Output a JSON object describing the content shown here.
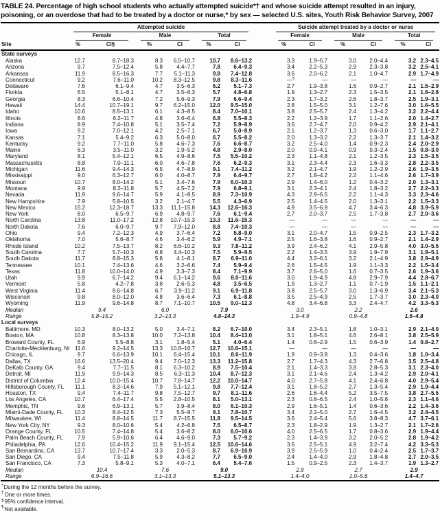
{
  "title": "TABLE 24. Percentage of high school students who actually attempted suicide*† and whose suicide attempt resulted in an injury, poisoning, or an overdose that had to be treated by a doctor or nurse,* by sex — selected U.S. sites, Youth Risk Behavior Survey, 2007",
  "header": {
    "site": "Site",
    "group1": "Attempted suicide",
    "group2": "Suicide attempt treated by a doctor or nurse",
    "subgroups": [
      "Female",
      "Male",
      "Total"
    ],
    "cols": [
      "%",
      "CI§",
      "%",
      "CI",
      "%",
      "CI",
      "%",
      "CI",
      "%",
      "CI",
      "%",
      "CI"
    ]
  },
  "sections": [
    {
      "label": "State surveys",
      "median_label": "Median",
      "range_label": "Range",
      "rows": [
        [
          "Alaska",
          "12.7",
          "8.7–18.3",
          "8.3",
          "6.5–10.7",
          "10.7",
          "8.6–13.2",
          "3.3",
          "1.9–5.7",
          "3.0",
          "2.0–4.4",
          "3.2",
          "2.3–4.5"
        ],
        [
          "Arizona",
          "9.7",
          "7.5–12.4",
          "5.8",
          "4.4–7.7",
          "7.8",
          "6.4–9.3",
          "3.4",
          "2.2–5.3",
          "2.9",
          "2.3–3.8",
          "3.2",
          "2.5–4.1"
        ],
        [
          "Arkansas",
          "11.9",
          "8.5–16.3",
          "7.7",
          "5.1–11.3",
          "9.8",
          "7.4–12.8",
          "3.6",
          "2.0–6.2",
          "2.1",
          "1.0–4.7",
          "2.9",
          "1.7–4.9"
        ],
        [
          "Connecticut",
          "9.2",
          "7.6–11.0",
          "10.2",
          "8.3–12.5",
          "9.8",
          "8.3–11.6",
          "—¶",
          "—",
          "—",
          "—",
          "—",
          "—"
        ],
        [
          "Delaware",
          "7.6",
          "6.1–9.4",
          "4.7",
          "3.5–6.3",
          "6.2",
          "5.1–7.3",
          "2.7",
          "1.9–3.8",
          "1.6",
          "0.9–2.7",
          "2.1",
          "1.5–2.9"
        ],
        [
          "Florida",
          "6.5",
          "5.1–8.1",
          "4.7",
          "3.5–6.3",
          "5.7",
          "4.8–6.8",
          "1.9",
          "1.3–2.7",
          "2.3",
          "1.5–3.5",
          "2.1",
          "1.6–2.8"
        ],
        [
          "Georgia",
          "8.3",
          "6.6–10.4",
          "7.2",
          "5.6–9.3",
          "7.9",
          "6.6–9.4",
          "2.3",
          "1.7–3.2",
          "2.6",
          "1.8–3.7",
          "2.5",
          "1.9–3.1"
        ],
        [
          "Hawaii",
          "14.4",
          "10.7–19.1",
          "9.7",
          "6.2–15.0",
          "12.0",
          "9.5–15.0",
          "2.8",
          "1.5–5.0",
          "3.1",
          "1.2–7.6",
          "3.0",
          "1.6–5.5"
        ],
        [
          "Idaho",
          "10.6",
          "8.5–13.1",
          "6.1",
          "4.3–8.5",
          "8.4",
          "7.0–10.1",
          "3.8",
          "2.5–5.7",
          "2.4",
          "1.3–4.2",
          "3.2",
          "2.2–4.4"
        ],
        [
          "Illinois",
          "8.6",
          "6.2–11.7",
          "4.8",
          "3.6–6.4",
          "6.8",
          "5.5–8.3",
          "2.2",
          "1.2–3.9",
          "1.7",
          "1.1–2.6",
          "2.0",
          "1.4–2.7"
        ],
        [
          "Indiana",
          "8.9",
          "7.4–10.8",
          "5.1",
          "3.5–7.4",
          "7.2",
          "5.9–8.9",
          "3.6",
          "2.7–4.7",
          "2.0",
          "0.9–4.2",
          "2.9",
          "2.1–4.1"
        ],
        [
          "Iowa",
          "9.2",
          "7.0–12.1",
          "4.2",
          "2.5–7.1",
          "6.7",
          "5.0–8.9",
          "2.1",
          "1.2–3.7",
          "1.3",
          "0.6–3.0",
          "1.7",
          "1.1–2.7"
        ],
        [
          "Kansas",
          "7.1",
          "5.4–9.2",
          "6.3",
          "5.0–8.0",
          "6.7",
          "5.5–8.2",
          "2.0",
          "1.3–3.2",
          "2.2",
          "1.3–3.7",
          "2.1",
          "1.4–3.2"
        ],
        [
          "Kentucky",
          "9.2",
          "7.7–11.0",
          "5.8",
          "4.6–7.3",
          "7.6",
          "6.6–8.7",
          "3.2",
          "2.5–4.0",
          "1.4",
          "0.9–2.3",
          "2.4",
          "2.0–2.9"
        ],
        [
          "Maine",
          "6.3",
          "3.5–11.0",
          "3.2",
          "1.9–5.2",
          "4.8",
          "2.9–8.0",
          "2.0",
          "0.9–4.1",
          "0.9",
          "0.3–2.4",
          "1.5",
          "0.8–3.0"
        ],
        [
          "Maryland",
          "8.1",
          "5.4–12.1",
          "6.5",
          "4.9–8.6",
          "7.5",
          "5.5–10.2",
          "2.3",
          "1.1–4.8",
          "2.1",
          "1.2–3.5",
          "2.3",
          "1.5–3.5"
        ],
        [
          "Massachusetts",
          "8.8",
          "7.0–11.1",
          "6.0",
          "4.6–7.8",
          "7.6",
          "6.2–9.3",
          "3.1",
          "2.3–4.4",
          "2.3",
          "1.6–3.3",
          "2.8",
          "2.2–3.5"
        ],
        [
          "Michigan",
          "11.6",
          "9.4–14.3",
          "6.5",
          "4.7–8.9",
          "9.1",
          "7.4–11.2",
          "3.2",
          "2.1–4.7",
          "1.9",
          "1.2–2.9",
          "2.6",
          "1.9–3.5"
        ],
        [
          "Mississippi",
          "9.0",
          "6.3–12.7",
          "6.0",
          "4.0–8.7",
          "7.9",
          "6.4–9.7",
          "2.7",
          "1.8–4.2",
          "2.2",
          "1.1–4.6",
          "2.6",
          "1.7–3.9"
        ],
        [
          "Missouri",
          "10.7",
          "8.0–14.2",
          "5.1",
          "3.4–7.6",
          "7.9",
          "6.0–10.3",
          "2.9",
          "1.4–6.0",
          "1.2",
          "0.4–3.2",
          "2.0",
          "1.3–3.1"
        ],
        [
          "Montana",
          "9.9",
          "8.2–11.8",
          "5.7",
          "4.5–7.2",
          "7.9",
          "6.8–9.1",
          "3.1",
          "2.3–4.1",
          "2.4",
          "1.8–3.2",
          "2.7",
          "2.2–3.3"
        ],
        [
          "Nevada",
          "11.9",
          "9.6–14.7",
          "5.9",
          "4.1–8.5",
          "8.9",
          "7.3–10.9",
          "4.3",
          "2.9–6.5",
          "2.2",
          "1.1–4.3",
          "3.3",
          "2.3–4.6"
        ],
        [
          "New Hampshire",
          "7.9",
          "5.8–10.5",
          "3.2",
          "2.1–4.7",
          "5.5",
          "4.3–6.9",
          "2.5",
          "1.4–4.5",
          "2.0",
          "1.3–3.1",
          "2.2",
          "1.5–3.3"
        ],
        [
          "New Mexico",
          "15.2",
          "12.3–18.7",
          "13.3",
          "11.1–15.8",
          "14.3",
          "12.6–16.3",
          "4.9",
          "3.5–6.9",
          "4.7",
          "3.4–6.3",
          "4.8",
          "3.9–5.9"
        ],
        [
          "New York",
          "8.0",
          "6.5–9.7",
          "6.9",
          "4.8–9.7",
          "7.6",
          "6.1–9.4",
          "2.7",
          "2.0–3.7",
          "2.5",
          "1.7–3.8",
          "2.7",
          "2.0–3.6"
        ],
        [
          "North Carolina",
          "13.8",
          "11.0–17.2",
          "12.8",
          "10.7–15.3",
          "13.3",
          "11.6–15.3",
          "—",
          "—",
          "—",
          "—",
          "—",
          "—"
        ],
        [
          "North Dakota",
          "7.6",
          "6.0–9.7",
          "9.7",
          "7.9–12.0",
          "8.8",
          "7.4–10.3",
          "—",
          "—",
          "—",
          "—",
          "—",
          "—"
        ],
        [
          "Ohio",
          "9.4",
          "7.2–12.3",
          "4.9",
          "3.7–6.4",
          "7.2",
          "5.8–9.0",
          "3.1",
          "2.0–4.7",
          "1.5",
          "0.9–2.5",
          "2.3",
          "1.7–3.2"
        ],
        [
          "Oklahoma",
          "7.0",
          "5.6–8.7",
          "4.6",
          "3.4–6.2",
          "5.9",
          "4.9–7.1",
          "2.5",
          "1.6–3.8",
          "1.6",
          "0.9–2.7",
          "2.1",
          "1.4–2.9"
        ],
        [
          "Rhode Island",
          "10.2",
          "7.5–13.7",
          "8.2",
          "6.6–10.2",
          "9.3",
          "7.8–11.2",
          "3.9",
          "2.4–6.2",
          "4.1",
          "2.9–5.8",
          "4.0",
          "3.0–5.5"
        ],
        [
          "South Carolina",
          "7.7",
          "5.7–10.3",
          "6.8",
          "4.4–10.3",
          "7.5",
          "5.9–9.5",
          "2.2",
          "1.4–3.5",
          "3.9",
          "1.9–7.9",
          "3.1",
          "1.9–5.1"
        ],
        [
          "South Dakota",
          "11.7",
          "8.8–15.3",
          "5.8",
          "4.1–8.1",
          "8.7",
          "6.9–11.0",
          "4.4",
          "3.2–6.1",
          "3.2",
          "2.1–4.9",
          "3.8",
          "2.9–4.9"
        ],
        [
          "Tennessee",
          "10.1",
          "7.4–13.6",
          "4.6",
          "3.2–6.6",
          "7.4",
          "5.9–9.4",
          "2.6",
          "1.5–4.5",
          "1.9",
          "1.1–3.3",
          "2.2",
          "1.5–3.4"
        ],
        [
          "Texas",
          "11.8",
          "10.0–14.0",
          "4.9",
          "3.3–7.3",
          "8.4",
          "7.1–9.9",
          "3.7",
          "2.6–5.0",
          "1.6",
          "0.7–3.5",
          "2.6",
          "1.9–3.6"
        ],
        [
          "Utah",
          "9.9",
          "6.7–14.2",
          "9.4",
          "6.1–14.2",
          "9.6",
          "8.0–11.6",
          "3.0",
          "1.9–4.9",
          "4.8",
          "2.9–7.9",
          "4.4",
          "2.8–6.7"
        ],
        [
          "Vermont",
          "5.8",
          "4.2–7.8",
          "3.8",
          "2.6–5.3",
          "4.8",
          "3.5–6.5",
          "1.9",
          "1.3–2.7",
          "1.1",
          "0.7–1.9",
          "1.5",
          "1.1–2.1"
        ],
        [
          "West Virginia",
          "11.4",
          "8.6–14.8",
          "6.7",
          "3.9–11.2",
          "9.1",
          "6.9–11.8",
          "3.8",
          "2.5–5.7",
          "3.0",
          "1.3–6.9",
          "3.4",
          "2.1–5.3"
        ],
        [
          "Wisconsin",
          "9.8",
          "8.0–12.0",
          "4.8",
          "3.6–6.4",
          "7.3",
          "6.1–8.8",
          "3.5",
          "2.5–4.9",
          "2.5",
          "1.7–3.7",
          "3.0",
          "2.3–4.0"
        ],
        [
          "Wyoming",
          "11.9",
          "9.6–14.8",
          "8.7",
          "7.1–10.7",
          "10.5",
          "9.0–12.3",
          "4.8",
          "3.4–6.8",
          "3.3",
          "2.4–4.7",
          "4.2",
          "3.3–5.3"
        ]
      ],
      "median": [
        "9.4",
        "6.0",
        "7.9",
        "3.0",
        "2.2",
        "2.6"
      ],
      "range": [
        "5.8–15.2",
        "3.2–13.3",
        "4.8–14.3",
        "1.9–4.9",
        "0.9–4.8",
        "1.5–4.8"
      ]
    },
    {
      "label": "Local surveys",
      "median_label": "Median",
      "range_label": "Range",
      "rows": [
        [
          "Baltimore, MD",
          "10.3",
          "8.0–13.2",
          "5.0",
          "3.4–7.1",
          "8.2",
          "6.7–10.0",
          "3.4",
          "2.3–5.1",
          "1.8",
          "1.0–3.1",
          "2.9",
          "2.1–4.0"
        ],
        [
          "Boston, MA",
          "10.8",
          "8.3–13.8",
          "10.0",
          "7.2–13.8",
          "10.4",
          "8.4–13.0",
          "3.1",
          "1.8–5.1",
          "4.6",
          "2.6–8.1",
          "3.8",
          "2.5–5.9"
        ],
        [
          "Broward County, FL",
          "6.9",
          "5.5–8.8",
          "3.1",
          "1.8–5.4",
          "5.1",
          "4.0–6.4",
          "1.4",
          "0.6–2.9",
          "1.5",
          "0.6–3.9",
          "1.4",
          "0.8–2.7"
        ],
        [
          "Charlotte-Mecklenburg, NC",
          "11.6",
          "9.2–14.5",
          "13.3",
          "10.6–16.7",
          "12.7",
          "10.6–15.1",
          "—",
          "—",
          "—",
          "—",
          "—",
          "—"
        ],
        [
          "Chicago, IL",
          "9.7",
          "6.6–13.9",
          "10.1",
          "6.4–15.4",
          "10.1",
          "8.6–11.9",
          "1.9",
          "0.9–3.8",
          "1.3",
          "0.4–3.6",
          "1.8",
          "1.0–3.4"
        ],
        [
          "Dallas, TX",
          "16.6",
          "13.5–20.4",
          "9.4",
          "7.0–12.3",
          "13.3",
          "11.2–15.8",
          "2.7",
          "1.7–4.3",
          "4.3",
          "2.7–6.8",
          "3.5",
          "2.5–4.8"
        ],
        [
          "DeKalb County, GA",
          "9.4",
          "7.7–11.5",
          "8.1",
          "6.3–10.2",
          "8.9",
          "7.5–10.4",
          "2.1",
          "1.4–3.3",
          "3.8",
          "2.8–5.3",
          "3.1",
          "2.3–4.0"
        ],
        [
          "Detroit, MI",
          "11.9",
          "9.9–14.3",
          "8.5",
          "6.3–11.3",
          "10.4",
          "8.7–12.3",
          "3.1",
          "2.1–4.6",
          "2.4",
          "1.3–4.2",
          "2.9",
          "2.0–4.1"
        ],
        [
          "District of Columbia",
          "12.4",
          "10.0–15.4",
          "10.7",
          "7.8–14.7",
          "12.2",
          "10.0–14.7",
          "4.0",
          "2.7–5.8",
          "4.1",
          "2.4–6.8",
          "4.0",
          "2.9–5.4"
        ],
        [
          "Hillsborough County, FL",
          "11.1",
          "8.3–14.6",
          "7.9",
          "5.1–12.1",
          "9.8",
          "7.7–12.4",
          "3.1",
          "1.8–5.2",
          "2.7",
          "1.3–5.4",
          "2.9",
          "1.9–4.4"
        ],
        [
          "Houston, TX",
          "9.4",
          "7.4–11.7",
          "9.8",
          "7.5–12.7",
          "9.7",
          "8.1–11.6",
          "2.6",
          "1.6–4.4",
          "5.2",
          "3.5–7.5",
          "3.8",
          "2.7–5.5"
        ],
        [
          "Los Angeles, CA",
          "10.7",
          "6.4–17.4",
          "5.5",
          "2.8–10.5",
          "8.1",
          "5.0–13.1",
          "2.3",
          "0.8–6.5",
          "2.4",
          "1.0–5.6",
          "2.3",
          "1.1–4.6"
        ],
        [
          "Memphis, TN",
          "9.6",
          "6.9–13.1",
          "5.7",
          "3.9–8.4",
          "8.0",
          "6.1–10.3",
          "2.9",
          "1.6–5.1",
          "1.4",
          "0.6–3.6",
          "2.2",
          "1.4–3.6"
        ],
        [
          "Miami-Dade County, FL",
          "10.3",
          "8.4–12.5",
          "7.3",
          "5.5–9.7",
          "9.1",
          "7.8–10.7",
          "3.4",
          "2.2–5.0",
          "2.7",
          "1.6–4.5",
          "3.2",
          "2.4–4.5"
        ],
        [
          "Milwaukee, WI",
          "11.4",
          "8.8–14.5",
          "11.7",
          "8.7–15.5",
          "11.8",
          "9.5–14.5",
          "3.6",
          "2.4–5.4",
          "5.6",
          "3.8–8.3",
          "4.7",
          "3.7–6.1"
        ],
        [
          "New York City, NY",
          "9.3",
          "8.0–10.6",
          "5.4",
          "4.2–6.8",
          "7.5",
          "6.5–8.7",
          "2.3",
          "1.8–2.9",
          "1.9",
          "1.3–2.7",
          "2.1",
          "1.7–2.6"
        ],
        [
          "Orange County, FL",
          "10.5",
          "7.4–14.8",
          "5.4",
          "3.6–8.2",
          "8.0",
          "6.0–10.6",
          "4.0",
          "2.5–6.5",
          "1.7",
          "0.8–3.6",
          "2.9",
          "1.9–4.4"
        ],
        [
          "Palm Beach County, FL",
          "7.9",
          "5.9–10.6",
          "6.4",
          "4.6–9.0",
          "7.3",
          "5.7–9.2",
          "2.3",
          "1.4–3.9",
          "3.2",
          "2.0–5.2",
          "2.8",
          "1.9–4.2"
        ],
        [
          "Philadelphia, PA",
          "12.6",
          "10.4–15.2",
          "11.9",
          "9.1–15.4",
          "12.5",
          "10.6–14.6",
          "3.6",
          "2.5–5.1",
          "4.9",
          "3.2–7.4",
          "4.2",
          "3.3–5.3"
        ],
        [
          "San Bernardino, CA",
          "13.7",
          "10.7–17.4",
          "3.3",
          "2.0–5.3",
          "8.7",
          "6.9–10.9",
          "3.9",
          "2.5–5.9",
          "1.0",
          "0.4–2.4",
          "2.5",
          "1.7–3.7"
        ],
        [
          "San Diego, CA",
          "9.4",
          "7.5–11.8",
          "5.9",
          "4.3–8.2",
          "7.7",
          "6.5–9.0",
          "2.4",
          "1.4–4.0",
          "2.9",
          "1.8–4.8",
          "2.7",
          "2.0–3.5"
        ],
        [
          "San Francisco, CA",
          "7.3",
          "5.8–9.1",
          "5.3",
          "4.0–7.1",
          "6.4",
          "5.4–7.6",
          "1.5",
          "0.9–2.5",
          "2.3",
          "1.4–3.7",
          "1.9",
          "1.3–2.7"
        ]
      ],
      "median": [
        "10.4",
        "7.6",
        "9.0",
        "2.9",
        "2.7",
        "2.9"
      ],
      "range": [
        "6.9–16.6",
        "3.1–13.3",
        "5.1–13.3",
        "1.4–4.0",
        "1.0–5.6",
        "1.4–4.7"
      ]
    }
  ],
  "footnotes": [
    {
      "marker": "*",
      "text": "During the 12 months before the survey."
    },
    {
      "marker": "†",
      "text": "One or more times."
    },
    {
      "marker": "§",
      "text": "95% confidence interval."
    },
    {
      "marker": "¶",
      "text": "Not available."
    }
  ]
}
